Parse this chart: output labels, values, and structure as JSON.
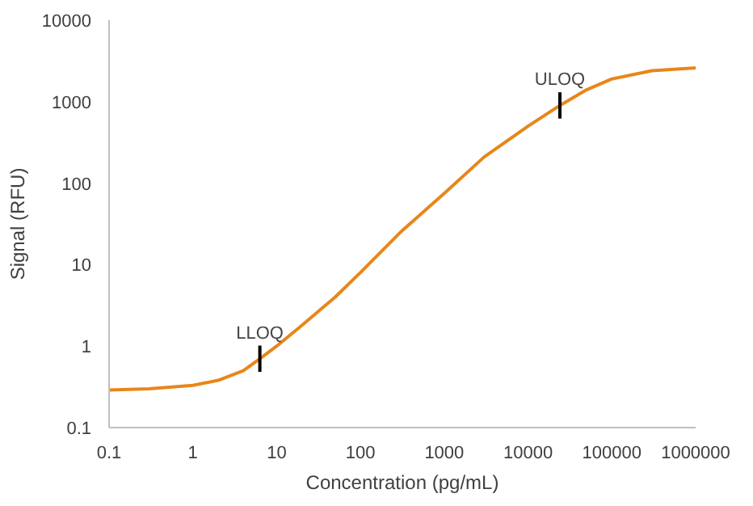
{
  "chart_data": {
    "type": "line",
    "xlabel": "Concentration (pg/mL)",
    "ylabel": "Signal (RFU)",
    "log": "xy",
    "grid": false,
    "marker": "none",
    "line_style": "solid",
    "xlim": [
      0.1,
      1000000
    ],
    "ylim": [
      0.1,
      10000
    ],
    "xticks": [
      0.1,
      1,
      10,
      100,
      1000,
      10000,
      100000,
      1000000
    ],
    "yticks": [
      0.1,
      1,
      10,
      100,
      1000,
      10000
    ],
    "x": [
      0.1,
      0.3,
      1,
      2,
      4,
      6.3,
      10,
      20,
      50,
      100,
      300,
      1000,
      3000,
      10000,
      24000,
      50000,
      100000,
      300000,
      1000000
    ],
    "series": [
      {
        "color": "#e8861a",
        "values": [
          0.29,
          0.3,
          0.33,
          0.38,
          0.5,
          0.7,
          1.0,
          1.8,
          4.0,
          8,
          25,
          75,
          210,
          500,
          900,
          1400,
          1900,
          2400,
          2600
        ]
      }
    ],
    "annotations": [
      {
        "text": "LLOQ",
        "x": 6.3,
        "y": 0.7
      },
      {
        "text": "ULOQ",
        "x": 24000,
        "y": 900
      }
    ]
  }
}
